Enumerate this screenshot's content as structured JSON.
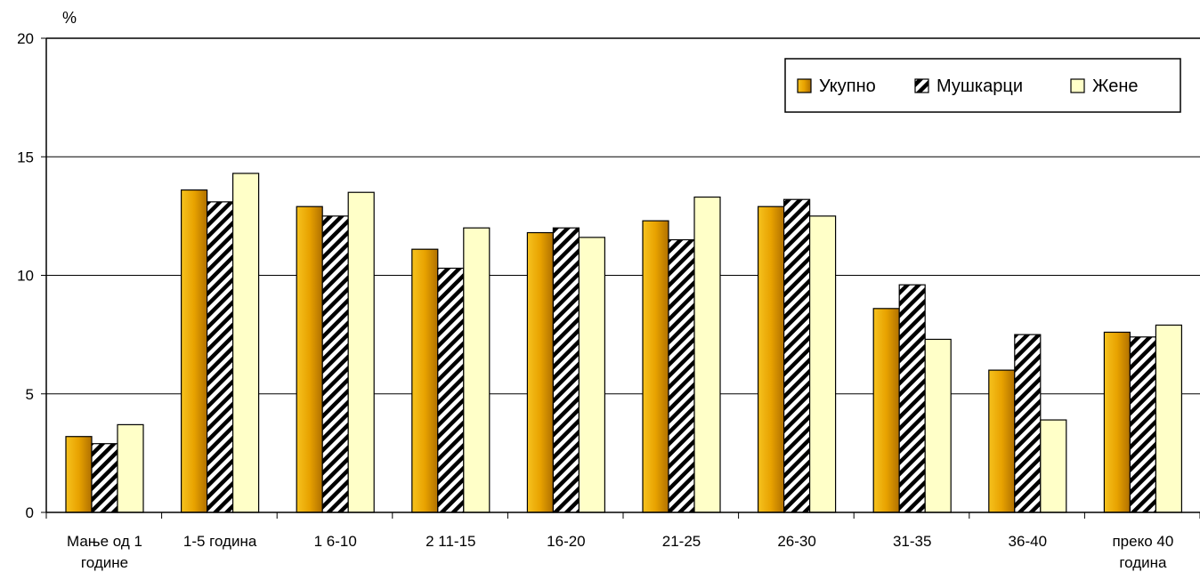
{
  "chart_data": {
    "type": "bar",
    "ylabel": "%",
    "ylim": [
      0,
      20
    ],
    "yticks": [
      "0",
      "5",
      "10",
      "15",
      "20"
    ],
    "categories": [
      [
        "Мање од 1",
        "године"
      ],
      [
        "1-5 година"
      ],
      [
        "1   6-10"
      ],
      [
        "2   11-15"
      ],
      [
        "16-20"
      ],
      [
        "21-25"
      ],
      [
        "26-30"
      ],
      [
        "31-35"
      ],
      [
        "36-40"
      ],
      [
        "преко 40",
        "година"
      ]
    ],
    "series": [
      {
        "name": "Укупно",
        "pattern": "solid-gold",
        "color": "#E8A200",
        "values": [
          3.2,
          13.6,
          12.9,
          11.1,
          11.8,
          12.3,
          12.9,
          8.6,
          6.0,
          7.6
        ]
      },
      {
        "name": "Мушкарци",
        "pattern": "hatched",
        "color": "#000000",
        "values": [
          2.9,
          13.1,
          12.5,
          10.3,
          12.0,
          11.5,
          13.2,
          9.6,
          7.5,
          7.4
        ]
      },
      {
        "name": "Жене",
        "pattern": "solid-cream",
        "color": "#FFFFC8",
        "values": [
          3.7,
          14.3,
          13.5,
          12.0,
          11.6,
          13.3,
          12.5,
          7.3,
          3.9,
          7.9
        ]
      }
    ],
    "grid": true,
    "legend_position": "top-right"
  }
}
